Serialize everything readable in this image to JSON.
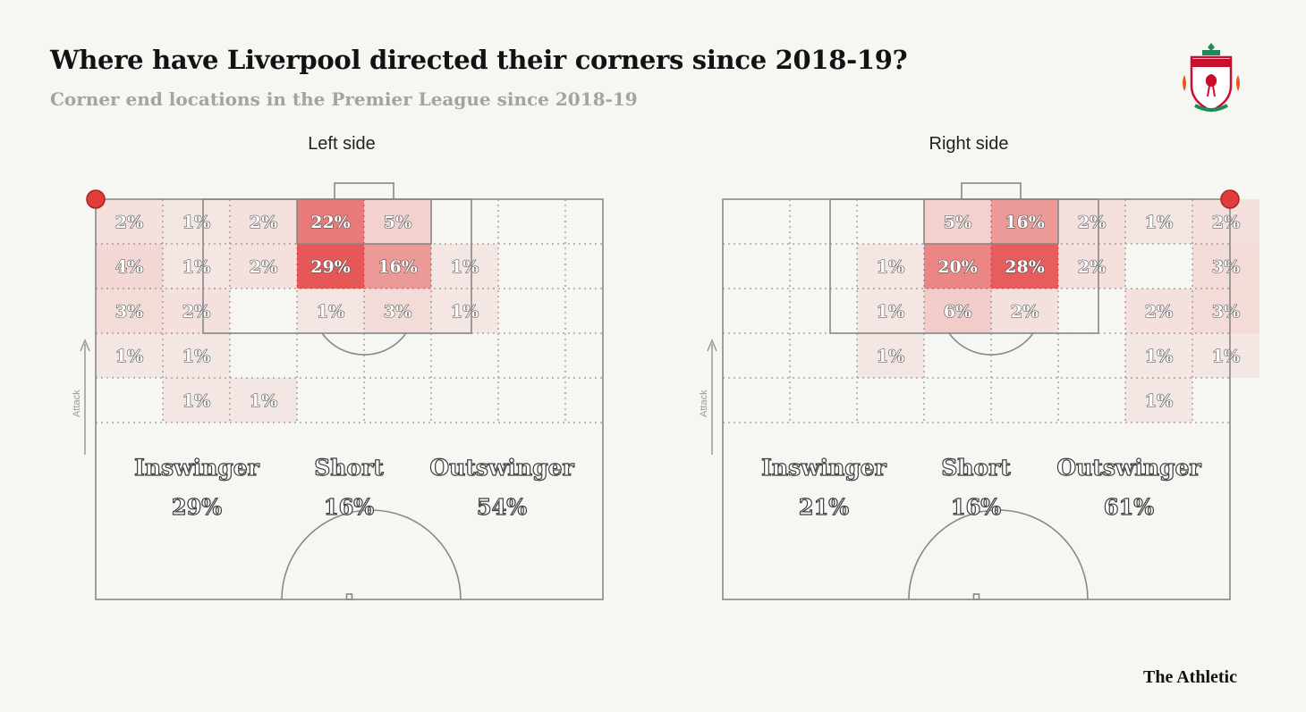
{
  "header": {
    "title": "Where have Liverpool directed their corners since 2018-19?",
    "subtitle": "Corner end locations in the Premier League since 2018-19"
  },
  "footer": {
    "brand": "The Athletic"
  },
  "logo": {
    "text": "LIVERPOOL"
  },
  "colors": {
    "background": "#f6f6f2",
    "heat": "#e02a2a",
    "corner_marker": "#e23b3b",
    "line": "#888888"
  },
  "chart_data": [
    {
      "type": "heatmap",
      "title": "Left side",
      "corner": "top-left",
      "ylabel": "Attack",
      "grid": {
        "rows": 5,
        "cols": 8
      },
      "cells": [
        {
          "row": 0,
          "col": 0,
          "label": "2%",
          "value": 2
        },
        {
          "row": 0,
          "col": 1,
          "label": "1%",
          "value": 1
        },
        {
          "row": 0,
          "col": 2,
          "label": "2%",
          "value": 2
        },
        {
          "row": 0,
          "col": 3,
          "label": "22%",
          "value": 22
        },
        {
          "row": 0,
          "col": 4,
          "label": "5%",
          "value": 5
        },
        {
          "row": 1,
          "col": 0,
          "label": "4%",
          "value": 4
        },
        {
          "row": 1,
          "col": 1,
          "label": "1%",
          "value": 1
        },
        {
          "row": 1,
          "col": 2,
          "label": "2%",
          "value": 2
        },
        {
          "row": 1,
          "col": 3,
          "label": "29%",
          "value": 29
        },
        {
          "row": 1,
          "col": 4,
          "label": "16%",
          "value": 16
        },
        {
          "row": 1,
          "col": 5,
          "label": "1%",
          "value": 1
        },
        {
          "row": 2,
          "col": 0,
          "label": "3%",
          "value": 3
        },
        {
          "row": 2,
          "col": 1,
          "label": "2%",
          "value": 2
        },
        {
          "row": 2,
          "col": 3,
          "label": "1%",
          "value": 1
        },
        {
          "row": 2,
          "col": 4,
          "label": "3%",
          "value": 3
        },
        {
          "row": 2,
          "col": 5,
          "label": "1%",
          "value": 1
        },
        {
          "row": 3,
          "col": 0,
          "label": "1%",
          "value": 1
        },
        {
          "row": 3,
          "col": 1,
          "label": "1%",
          "value": 1
        },
        {
          "row": 4,
          "col": 1,
          "label": "1%",
          "value": 1
        },
        {
          "row": 4,
          "col": 2,
          "label": "1%",
          "value": 1
        }
      ],
      "summary": [
        {
          "label": "Inswinger",
          "value": "29%"
        },
        {
          "label": "Short",
          "value": "16%"
        },
        {
          "label": "Outswinger",
          "value": "54%"
        }
      ]
    },
    {
      "type": "heatmap",
      "title": "Right side",
      "corner": "top-right",
      "ylabel": "Attack",
      "grid": {
        "rows": 5,
        "cols": 8
      },
      "cells": [
        {
          "row": 0,
          "col": 3,
          "label": "5%",
          "value": 5
        },
        {
          "row": 0,
          "col": 4,
          "label": "16%",
          "value": 16
        },
        {
          "row": 0,
          "col": 5,
          "label": "2%",
          "value": 2
        },
        {
          "row": 0,
          "col": 6,
          "label": "1%",
          "value": 1
        },
        {
          "row": 0,
          "col": 7,
          "label": "2%",
          "value": 2
        },
        {
          "row": 1,
          "col": 2,
          "label": "1%",
          "value": 1
        },
        {
          "row": 1,
          "col": 3,
          "label": "20%",
          "value": 20
        },
        {
          "row": 1,
          "col": 4,
          "label": "28%",
          "value": 28
        },
        {
          "row": 1,
          "col": 5,
          "label": "2%",
          "value": 2
        },
        {
          "row": 1,
          "col": 7,
          "label": "3%",
          "value": 3
        },
        {
          "row": 2,
          "col": 2,
          "label": "1%",
          "value": 1
        },
        {
          "row": 2,
          "col": 3,
          "label": "6%",
          "value": 6
        },
        {
          "row": 2,
          "col": 4,
          "label": "2%",
          "value": 2
        },
        {
          "row": 2,
          "col": 6,
          "label": "2%",
          "value": 2
        },
        {
          "row": 2,
          "col": 7,
          "label": "3%",
          "value": 3
        },
        {
          "row": 3,
          "col": 2,
          "label": "1%",
          "value": 1
        },
        {
          "row": 3,
          "col": 6,
          "label": "1%",
          "value": 1
        },
        {
          "row": 3,
          "col": 7,
          "label": "1%",
          "value": 1
        },
        {
          "row": 4,
          "col": 6,
          "label": "1%",
          "value": 1
        }
      ],
      "summary": [
        {
          "label": "Inswinger",
          "value": "21%"
        },
        {
          "label": "Short",
          "value": "16%"
        },
        {
          "label": "Outswinger",
          "value": "61%"
        }
      ]
    }
  ]
}
